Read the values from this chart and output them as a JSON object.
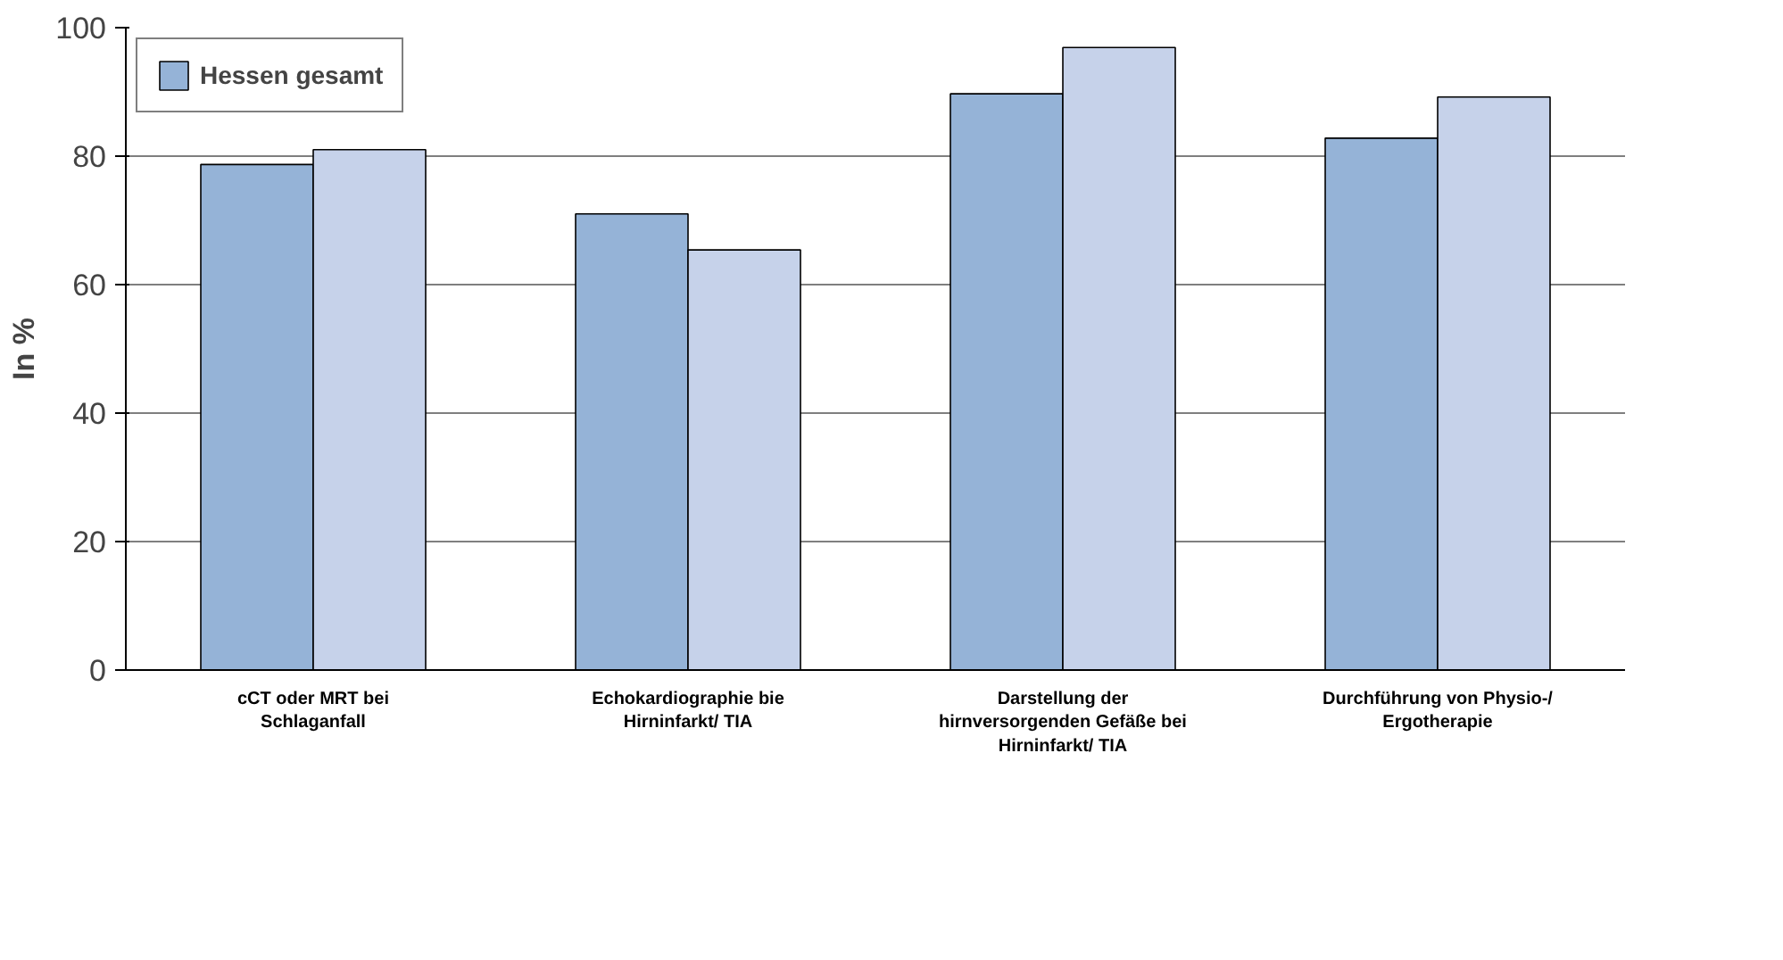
{
  "chart_data": {
    "type": "bar",
    "ylabel": "In %",
    "categories": [
      "cCT oder MRT bei Schlaganfall",
      "Echokardiographie bie Hirninfarkt/ TIA",
      "Darstellung der hirnversorgenden Gefäße bei Hirninfarkt/ TIA",
      "Durchführung von Physio-/ Ergotherapie"
    ],
    "series": [
      {
        "name": "Hessen gesamt",
        "color": "#95b3d7",
        "values": [
          78.7,
          71,
          89.7,
          82.8
        ]
      },
      {
        "color": "#c6d2ea",
        "values": [
          81,
          65.4,
          96.9,
          89.2
        ]
      }
    ],
    "ylim": [
      0,
      100
    ],
    "yticks": [
      0,
      20,
      40,
      60,
      80,
      100
    ],
    "grid": "y",
    "legend": "top left"
  }
}
